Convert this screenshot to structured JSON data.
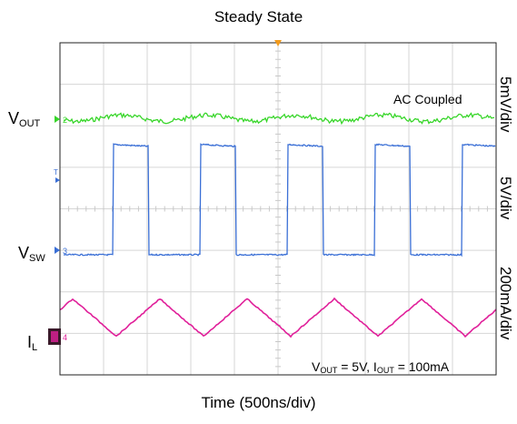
{
  "chart_data": {
    "type": "line",
    "title": "Steady State",
    "xlabel": "Time (500ns/div)",
    "grid": true,
    "divisions": {
      "x": 10,
      "y": 8
    },
    "annotations": {
      "coupling": "AC Coupled",
      "conditions": {
        "v": "V",
        "v_sub": "OUT",
        "v_val": " = 5V, ",
        "i": "I",
        "i_sub": "OUT",
        "i_val": " = 100mA"
      }
    },
    "series": [
      {
        "name": "VOUT",
        "label_main": "V",
        "label_sub": "OUT",
        "channel": "2",
        "scale": "5mV/div",
        "color": "#38d62a",
        "shape": "ripple",
        "period_ns": 1000,
        "ripple_divs": 0.15
      },
      {
        "name": "VSW",
        "label_main": "V",
        "label_sub": "SW",
        "channel": "3",
        "scale": "5V/div",
        "color": "#3a6fd6",
        "shape": "square",
        "period_ns": 1000,
        "duty": 0.6,
        "amplitude_divs": 2.7,
        "amplitude_V": 13.5
      },
      {
        "name": "IL",
        "label_main": "I",
        "label_sub": "L",
        "channel": "4",
        "scale": "200mA/div",
        "color": "#e0209a",
        "shape": "triangle",
        "period_ns": 1000,
        "ripple_divs": 0.9,
        "ripple_mA": 180
      }
    ]
  }
}
